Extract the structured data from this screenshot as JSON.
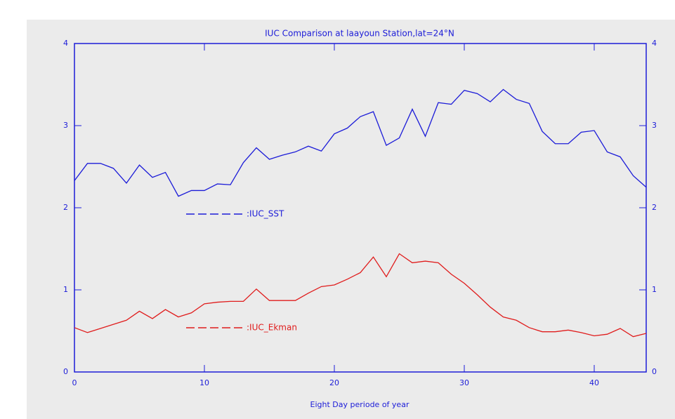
{
  "chart_data": {
    "type": "line",
    "title": "IUC Comparison at laayoun Station,lat=24°N",
    "x_label": "Eight Day periode of year",
    "x": [
      0,
      1,
      2,
      3,
      4,
      5,
      6,
      7,
      8,
      9,
      10,
      11,
      12,
      13,
      14,
      15,
      16,
      17,
      18,
      19,
      20,
      21,
      22,
      23,
      24,
      25,
      26,
      27,
      28,
      29,
      30,
      31,
      32,
      33,
      34,
      35,
      36,
      37,
      38,
      39,
      40,
      41,
      42,
      43,
      44
    ],
    "series": [
      {
        "name": ":IUC_SST",
        "color": "#1c1cd8",
        "values": [
          2.33,
          2.54,
          2.54,
          2.48,
          2.3,
          2.52,
          2.37,
          2.43,
          2.14,
          2.21,
          2.21,
          2.29,
          2.28,
          2.55,
          2.73,
          2.59,
          2.64,
          2.68,
          2.75,
          2.69,
          2.9,
          2.97,
          3.11,
          3.17,
          2.76,
          2.85,
          3.2,
          2.87,
          3.28,
          3.26,
          3.43,
          3.39,
          3.29,
          3.44,
          3.32,
          3.27,
          2.93,
          2.78,
          2.78,
          2.92,
          2.94,
          2.68,
          2.62,
          2.39,
          2.25
        ]
      },
      {
        "name": ":IUC_Ekman",
        "color": "#e01c1c",
        "values": [
          0.54,
          0.48,
          0.53,
          0.58,
          0.63,
          0.74,
          0.65,
          0.76,
          0.67,
          0.72,
          0.83,
          0.85,
          0.86,
          0.86,
          1.01,
          0.87,
          0.87,
          0.87,
          0.96,
          1.04,
          1.06,
          1.13,
          1.21,
          1.4,
          1.16,
          1.44,
          1.33,
          1.35,
          1.33,
          1.19,
          1.08,
          0.94,
          0.79,
          0.67,
          0.63,
          0.54,
          0.49,
          0.49,
          0.51,
          0.48,
          0.44,
          0.46,
          0.53,
          0.43,
          0.47
        ]
      }
    ],
    "xlim": [
      0,
      44
    ],
    "xticks": [
      0,
      10,
      20,
      30,
      40
    ],
    "ylim": [
      0,
      4
    ],
    "yticks": [
      0,
      1,
      2,
      3,
      4
    ]
  }
}
